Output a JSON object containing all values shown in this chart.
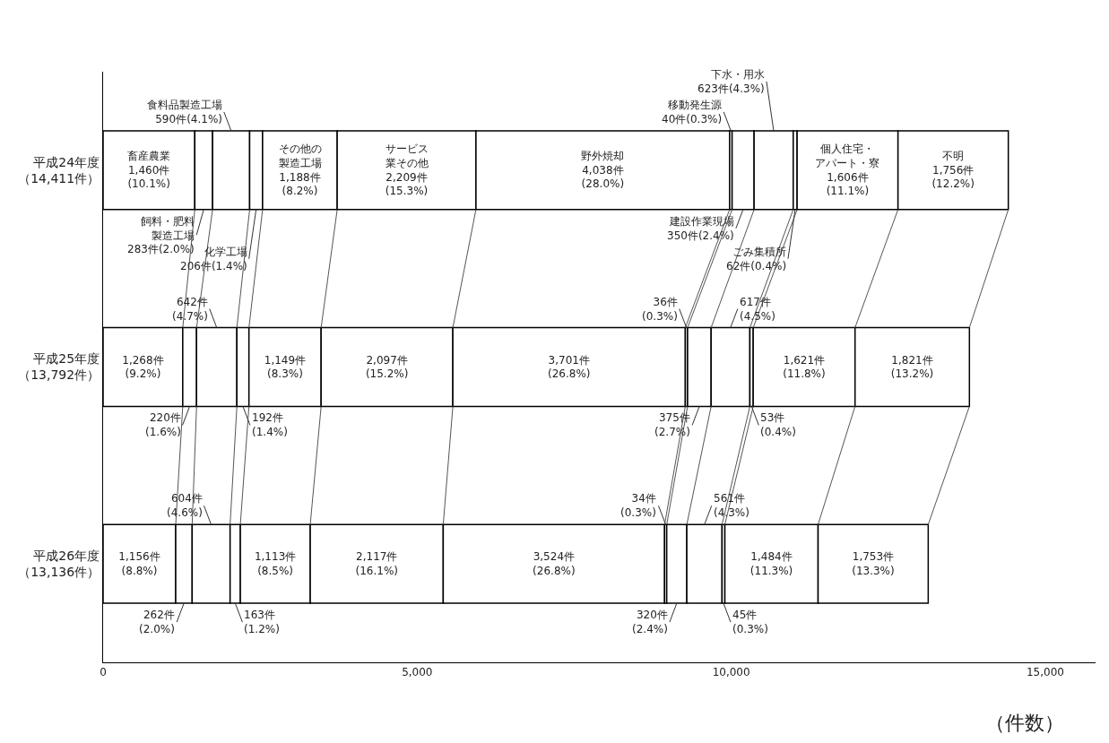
{
  "chart_data": {
    "type": "bar",
    "orientation": "horizontal",
    "stacked": true,
    "categories": [
      "平成24年度（14,411件）",
      "平成25年度（13,792件）",
      "平成26年度（13,136件）"
    ],
    "xlabel": "（件数）",
    "xlim": [
      0,
      15800
    ],
    "xticks": [
      0,
      {
        "value": 5000,
        "label": "5,000"
      },
      {
        "value": 10000,
        "label": "10,000"
      },
      {
        "value": 15000,
        "label": "15,000"
      }
    ],
    "grid": false,
    "legend": false,
    "series": [
      {
        "name": "畜産農業",
        "color": "#ffffff",
        "values": [
          1460,
          1268,
          1156
        ],
        "value_labels": [
          "1,460件\n(10.1%)",
          "1,268件\n(9.2%)",
          "1,156件\n(8.8%)"
        ]
      },
      {
        "name": "飼料・肥料製造工場",
        "color": "#ffffff",
        "values": [
          283,
          220,
          262
        ],
        "value_labels": [
          "283件(2.0%)",
          "220件\n(1.6%)",
          "262件\n(2.0%)"
        ]
      },
      {
        "name": "食料品製造工場",
        "color": "#ffffff",
        "values": [
          590,
          642,
          604
        ],
        "value_labels": [
          "590件(4.1%)",
          "642件\n(4.7%)",
          "604件\n(4.6%)"
        ]
      },
      {
        "name": "化学工場",
        "color": "#ffffff",
        "values": [
          206,
          192,
          163
        ],
        "value_labels": [
          "206件(1.4%)",
          "192件\n(1.4%)",
          "163件\n(1.2%)"
        ]
      },
      {
        "name": "その他の製造工場",
        "color": "#ffffff",
        "values": [
          1188,
          1149,
          1113
        ],
        "value_labels": [
          "1,188件\n(8.2%)",
          "1,149件\n(8.3%)",
          "1,113件\n(8.5%)"
        ]
      },
      {
        "name": "サービス業その他",
        "color": "#ffffff",
        "values": [
          2209,
          2097,
          2117
        ],
        "value_labels": [
          "2,209件\n(15.3%)",
          "2,097件\n(15.2%)",
          "2,117件\n(16.1%)"
        ]
      },
      {
        "name": "野外焼却",
        "color": "#ffffff",
        "values": [
          4038,
          3701,
          3524
        ],
        "value_labels": [
          "4,038件\n(28.0%)",
          "3,701件\n(26.8%)",
          "3,524件\n(26.8%)"
        ]
      },
      {
        "name": "移動発生源",
        "color": "#ffffff",
        "values": [
          40,
          36,
          34
        ],
        "value_labels": [
          "40件(0.3%)",
          "36件\n(0.3%)",
          "34件\n(0.3%)"
        ]
      },
      {
        "name": "建設作業現場",
        "color": "#ffffff",
        "values": [
          350,
          375,
          320
        ],
        "value_labels": [
          "350件(2.4%)",
          "375件\n(2.7%)",
          "320件\n(2.4%)"
        ]
      },
      {
        "name": "下水・用水",
        "color": "#ffffff",
        "values": [
          623,
          617,
          561
        ],
        "value_labels": [
          "623件(4.3%)",
          "617件\n(4.5%)",
          "561件\n(4.3%)"
        ]
      },
      {
        "name": "ごみ集積所",
        "color": "#ffffff",
        "values": [
          62,
          53,
          45
        ],
        "value_labels": [
          "62件(0.4%)",
          "53件\n(0.4%)",
          "45件\n(0.3%)"
        ]
      },
      {
        "name": "個人住宅・アパート・寮",
        "color": "#ffffff",
        "values": [
          1606,
          1621,
          1484
        ],
        "value_labels": [
          "1,606件\n(11.1%)",
          "1,621件\n(11.8%)",
          "1,484件\n(11.3%)"
        ]
      },
      {
        "name": "不明",
        "color": "#ffffff",
        "values": [
          1756,
          1821,
          1753
        ],
        "value_labels": [
          "1,756件\n(12.2%)",
          "1,821件\n(13.2%)",
          "1,753件\n(13.3%)"
        ]
      }
    ]
  }
}
